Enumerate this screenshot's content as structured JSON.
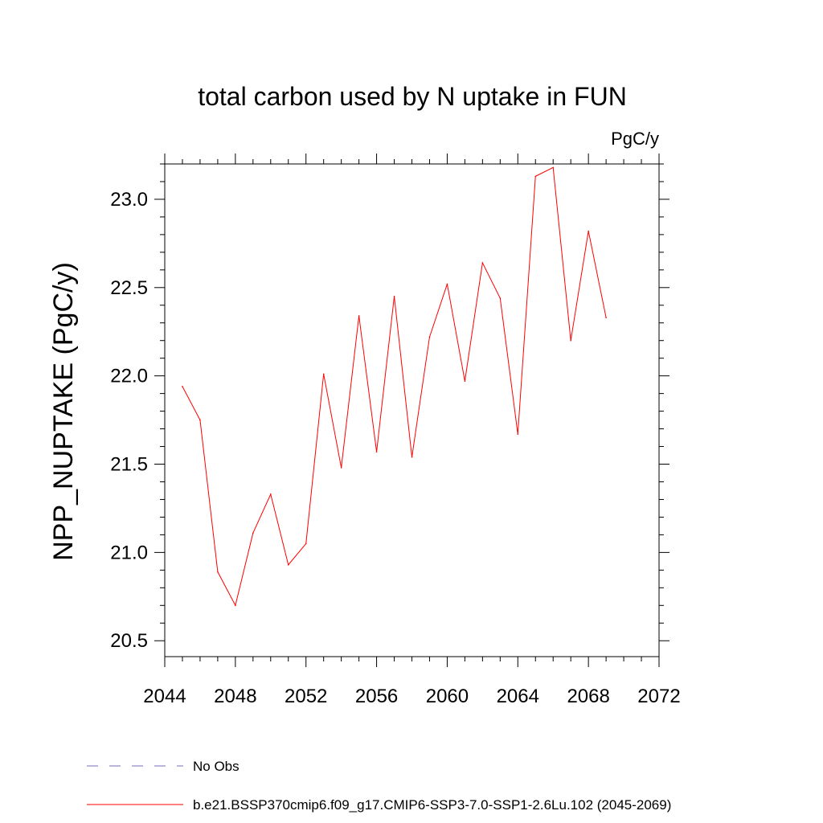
{
  "chart_data": {
    "type": "line",
    "title": "total carbon used by N uptake in FUN",
    "units_label": "PgC/y",
    "ylabel": "NPP_NUPTAKE  (PgC/y)",
    "xlabel": "",
    "xlim": [
      2044,
      2072
    ],
    "ylim": [
      20.41,
      23.2
    ],
    "x_ticks": [
      2044,
      2048,
      2052,
      2056,
      2060,
      2064,
      2068,
      2072
    ],
    "y_ticks": [
      20.5,
      21.0,
      21.5,
      22.0,
      22.5,
      23.0
    ],
    "y_tick_labels": [
      "20.5",
      "21.0",
      "21.5",
      "22.0",
      "22.5",
      "23.0"
    ],
    "series": [
      {
        "name": "b.e21.BSSP370cmip6.f09_g17.CMIP6-SSP3-7.0-SSP1-2.6Lu.102 (2045-2069)",
        "color": "#ff0000",
        "x": [
          2045,
          2046,
          2047,
          2048,
          2049,
          2050,
          2051,
          2052,
          2053,
          2054,
          2055,
          2056,
          2057,
          2058,
          2059,
          2060,
          2061,
          2062,
          2063,
          2064,
          2065,
          2066,
          2067,
          2068,
          2069
        ],
        "values": [
          21.94,
          21.75,
          20.89,
          20.7,
          21.11,
          21.33,
          20.93,
          21.05,
          22.01,
          21.48,
          22.34,
          21.57,
          22.45,
          21.54,
          22.22,
          22.52,
          21.97,
          22.64,
          22.44,
          21.67,
          23.13,
          23.18,
          22.2,
          22.82,
          22.33
        ]
      }
    ],
    "legend": [
      {
        "label": "No Obs",
        "style": "dashed",
        "color": "#7b68b8"
      },
      {
        "label": "b.e21.BSSP370cmip6.f09_g17.CMIP6-SSP3-7.0-SSP1-2.6Lu.102 (2045-2069)",
        "style": "solid",
        "color": "#ff0000"
      }
    ],
    "legend_position": "bottom-left",
    "grid": false
  }
}
